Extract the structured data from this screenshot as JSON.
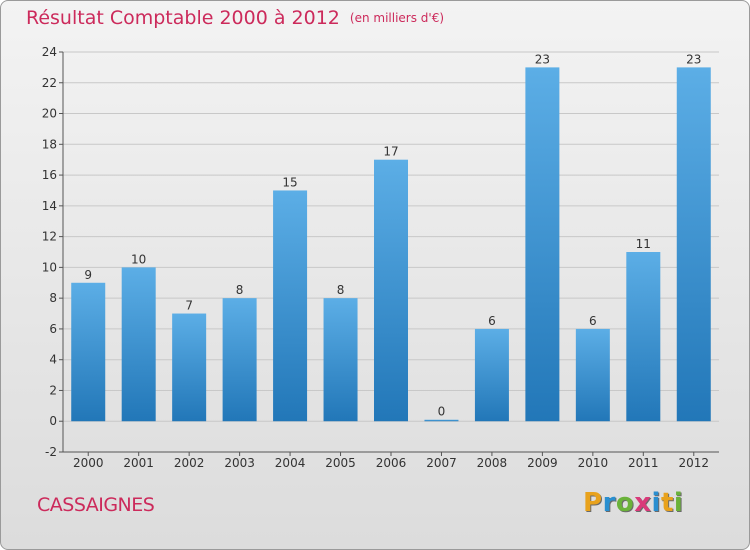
{
  "title": "Résultat Comptable 2000 à 2012",
  "subtitle": "(en milliers d'€)",
  "commune": "CASSAIGNES",
  "logo": {
    "letters": [
      "P",
      "r",
      "o",
      "x",
      "i",
      "t",
      "i"
    ],
    "colors": [
      "#e8a21d",
      "#2a8fd0",
      "#6ab23a",
      "#d93b7a",
      "#2a8fd0",
      "#e8a21d",
      "#6ab23a"
    ]
  },
  "colors": {
    "title": "#cc2a5b",
    "bar_top": "#5caee6",
    "bar_bottom": "#2277b8",
    "grid": "#c8c8c8"
  },
  "chart_data": {
    "type": "bar",
    "title": "Résultat Comptable 2000 à 2012",
    "subtitle": "(en milliers d'€)",
    "categories": [
      "2000",
      "2001",
      "2002",
      "2003",
      "2004",
      "2005",
      "2006",
      "2007",
      "2008",
      "2009",
      "2010",
      "2011",
      "2012"
    ],
    "values": [
      9,
      10,
      7,
      8,
      15,
      8,
      17,
      0,
      6,
      23,
      6,
      11,
      23
    ],
    "ylim": [
      -2,
      24
    ],
    "yticks": [
      -2,
      0,
      2,
      4,
      6,
      8,
      10,
      12,
      14,
      16,
      18,
      20,
      22,
      24
    ],
    "grid": true
  }
}
